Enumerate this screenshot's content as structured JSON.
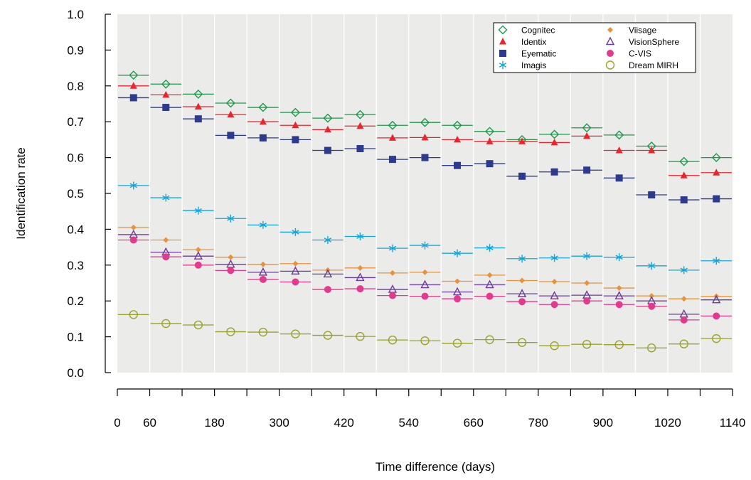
{
  "chart_data": {
    "type": "scatter",
    "xlabel": "Time difference (days)",
    "ylabel": "Identification rate",
    "xlim": [
      0,
      1140
    ],
    "ylim": [
      0.0,
      1.0
    ],
    "x_ticks": [
      0,
      60,
      180,
      300,
      420,
      540,
      660,
      780,
      900,
      1020,
      1140
    ],
    "x_tick_labels": [
      "0",
      "60",
      "180",
      "300",
      "420",
      "540",
      "660",
      "780",
      "900",
      "1020",
      "1140"
    ],
    "y_ticks": [
      0.0,
      0.1,
      0.2,
      0.3,
      0.4,
      0.5,
      0.6,
      0.7,
      0.8,
      0.9,
      1.0
    ],
    "y_tick_labels": [
      "0.0",
      "0.1",
      "0.2",
      "0.3",
      "0.4",
      "0.5",
      "0.6",
      "0.7",
      "0.8",
      "0.9",
      "1.0"
    ],
    "x_minor_ticks": [
      120,
      240,
      360,
      480,
      600,
      720,
      840,
      960,
      1080
    ],
    "bin_edges": [
      0,
      60,
      120,
      180,
      240,
      300,
      360,
      420,
      480,
      540,
      600,
      660,
      720,
      780,
      840,
      900,
      960,
      1020,
      1080,
      1140
    ],
    "x": [
      30,
      90,
      150,
      210,
      270,
      330,
      390,
      450,
      510,
      570,
      630,
      690,
      750,
      810,
      870,
      930,
      990,
      1050,
      1110
    ],
    "legend_position": "top-right",
    "plot_background": "#ebebea",
    "series": [
      {
        "name": "Cognitec",
        "marker": "diamond-open",
        "color": "#1e9a4a",
        "values": [
          0.83,
          0.805,
          0.777,
          0.752,
          0.74,
          0.726,
          0.71,
          0.72,
          0.69,
          0.698,
          0.69,
          0.673,
          0.65,
          0.665,
          0.683,
          0.663,
          0.632,
          0.589,
          0.6
        ]
      },
      {
        "name": "Identix",
        "marker": "triangle-filled",
        "color": "#e8262e",
        "values": [
          0.8,
          0.775,
          0.742,
          0.72,
          0.7,
          0.69,
          0.678,
          0.688,
          0.655,
          0.656,
          0.65,
          0.645,
          0.645,
          0.642,
          0.66,
          0.62,
          0.62,
          0.55,
          0.558
        ]
      },
      {
        "name": "Eyematic",
        "marker": "square-filled",
        "color": "#2d3b8e",
        "values": [
          0.767,
          0.74,
          0.708,
          0.662,
          0.655,
          0.65,
          0.62,
          0.625,
          0.595,
          0.6,
          0.578,
          0.583,
          0.548,
          0.56,
          0.565,
          0.543,
          0.496,
          0.482,
          0.485
        ]
      },
      {
        "name": "Imagis",
        "marker": "asterisk",
        "color": "#12a6db",
        "values": [
          0.522,
          0.488,
          0.452,
          0.43,
          0.412,
          0.392,
          0.37,
          0.38,
          0.347,
          0.355,
          0.333,
          0.348,
          0.318,
          0.32,
          0.325,
          0.322,
          0.298,
          0.286,
          0.312
        ]
      },
      {
        "name": "Viisage",
        "marker": "diamond-filled-small",
        "color": "#e8923c",
        "values": [
          0.405,
          0.37,
          0.343,
          0.322,
          0.302,
          0.304,
          0.286,
          0.292,
          0.278,
          0.28,
          0.255,
          0.272,
          0.257,
          0.254,
          0.25,
          0.236,
          0.214,
          0.206,
          0.213
        ]
      },
      {
        "name": "VisionSphere",
        "marker": "triangle-open",
        "color": "#6b3c97",
        "values": [
          0.385,
          0.336,
          0.325,
          0.302,
          0.28,
          0.283,
          0.275,
          0.265,
          0.232,
          0.245,
          0.225,
          0.245,
          0.22,
          0.214,
          0.216,
          0.214,
          0.2,
          0.163,
          0.203
        ]
      },
      {
        "name": "C-VIS",
        "marker": "circle-filled",
        "color": "#e23a8c",
        "values": [
          0.37,
          0.323,
          0.3,
          0.285,
          0.26,
          0.253,
          0.232,
          0.234,
          0.215,
          0.213,
          0.206,
          0.213,
          0.198,
          0.19,
          0.2,
          0.19,
          0.185,
          0.147,
          0.158
        ]
      },
      {
        "name": "Dream MIRH",
        "marker": "circle-open",
        "color": "#9aa12b",
        "values": [
          0.162,
          0.137,
          0.133,
          0.114,
          0.113,
          0.108,
          0.104,
          0.101,
          0.091,
          0.089,
          0.082,
          0.092,
          0.084,
          0.075,
          0.079,
          0.078,
          0.069,
          0.08,
          0.095
        ]
      }
    ]
  }
}
